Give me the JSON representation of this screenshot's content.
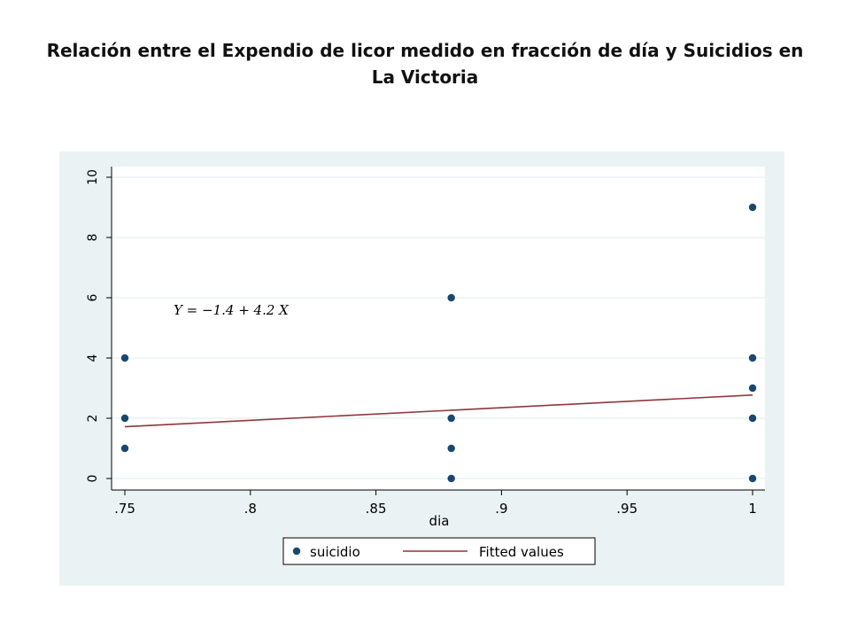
{
  "slide": {
    "title": "Relación entre el Expendio de licor medido en fracción de día y Suicidios en La Victoria"
  },
  "chart_data": {
    "type": "scatter",
    "title": "Relación entre el Expendio de licor medido en fracción de día y Suicidios en La Victoria",
    "xlabel": "dia",
    "ylabel": "",
    "xlim": [
      0.75,
      1.0
    ],
    "ylim": [
      0,
      10
    ],
    "x_ticks": [
      0.75,
      0.8,
      0.85,
      0.9,
      0.95,
      1.0
    ],
    "x_tick_labels": [
      ".75",
      ".8",
      ".85",
      ".9",
      ".95",
      "1"
    ],
    "y_ticks": [
      0,
      2,
      4,
      6,
      8,
      10
    ],
    "y_tick_labels": [
      "0",
      "2",
      "4",
      "6",
      "8",
      "10"
    ],
    "grid": true,
    "legend_position": "bottom",
    "series": [
      {
        "name": "suicidio",
        "kind": "scatter",
        "color": "#1a476f",
        "points": [
          {
            "x": 0.75,
            "y": 4
          },
          {
            "x": 0.75,
            "y": 2
          },
          {
            "x": 0.75,
            "y": 1
          },
          {
            "x": 0.88,
            "y": 6
          },
          {
            "x": 0.88,
            "y": 2
          },
          {
            "x": 0.88,
            "y": 1
          },
          {
            "x": 0.88,
            "y": 0
          },
          {
            "x": 1.0,
            "y": 9
          },
          {
            "x": 1.0,
            "y": 4
          },
          {
            "x": 1.0,
            "y": 3
          },
          {
            "x": 1.0,
            "y": 2
          },
          {
            "x": 1.0,
            "y": 0
          }
        ]
      },
      {
        "name": "Fitted values",
        "kind": "line",
        "color": "#90353b",
        "intercept": -1.4,
        "slope": 4.2
      }
    ],
    "annotation": "Y = −1.4 + 4.2 X"
  },
  "colors": {
    "outer_background": "#eaf2f3",
    "plot_background": "#ffffff",
    "grid": "#eaf2f3",
    "axis": "#000000"
  }
}
